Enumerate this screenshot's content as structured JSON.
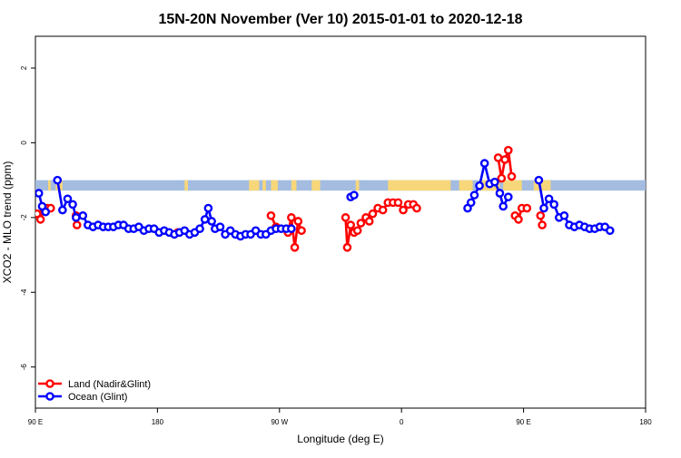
{
  "chart_data": {
    "type": "line",
    "title": "15N-20N November (Ver 10)   2015-01-01 to 2020-12-18",
    "xlabel": "Longitude (deg E)",
    "ylabel": "XCO2 - MLO trend (ppm)",
    "xlim": [
      90,
      450
    ],
    "ylim": [
      -7.1,
      2.85
    ],
    "x_ticks": [
      {
        "value": 90,
        "label": "90 E"
      },
      {
        "value": 162,
        "label": "180"
      },
      {
        "value": 234,
        "label": "90 W"
      },
      {
        "value": 306,
        "label": "0"
      },
      {
        "value": 378,
        "label": "90 E"
      },
      {
        "value": 450,
        "label": "180"
      }
    ],
    "y_ticks": [
      {
        "value": 2,
        "label": "2"
      },
      {
        "value": 0,
        "label": "0"
      },
      {
        "value": -2,
        "label": "-2"
      },
      {
        "value": -4,
        "label": "-4"
      },
      {
        "value": -6,
        "label": "-6"
      }
    ],
    "grid": false,
    "legend_position": "bottom-left",
    "land_ocean_band": {
      "y_range": [
        -1.28,
        -1.0
      ],
      "ocean_color": "#a3bce0",
      "land_color": "#f7d77a",
      "land_segments": [
        [
          97.5,
          99
        ],
        [
          102,
          106
        ],
        [
          178,
          180
        ],
        [
          216,
          222
        ],
        [
          224,
          226
        ],
        [
          229,
          233
        ],
        [
          241,
          244
        ],
        [
          253,
          258
        ],
        [
          279,
          281
        ],
        [
          298,
          335
        ],
        [
          340,
          348
        ],
        [
          352,
          364
        ],
        [
          366,
          377
        ],
        [
          384,
          394
        ]
      ]
    },
    "series": [
      {
        "name": "Land (Nadir&Glint)",
        "color": "#ff0000",
        "segments": [
          [
            [
              91,
              -1.9
            ],
            [
              93,
              -2.05
            ],
            [
              95,
              -1.8
            ],
            [
              97,
              -1.75
            ],
            [
              99,
              -1.75
            ]
          ],
          [
            [
              114,
              -1.95
            ],
            [
              114.5,
              -2.2
            ]
          ],
          [
            [
              174,
              -2.4
            ]
          ],
          [
            [
              229,
              -1.95
            ],
            [
              232,
              -2.25
            ]
          ],
          [
            [
              239,
              -2.4
            ],
            [
              241,
              -2.0
            ],
            [
              243,
              -2.8
            ],
            [
              245,
              -2.1
            ],
            [
              247,
              -2.35
            ]
          ],
          [
            [
              273,
              -2.0
            ],
            [
              274,
              -2.8
            ],
            [
              276,
              -2.2
            ],
            [
              278,
              -2.4
            ],
            [
              280,
              -2.35
            ],
            [
              282,
              -2.15
            ],
            [
              285,
              -2.0
            ],
            [
              287,
              -2.1
            ],
            [
              289,
              -1.9
            ],
            [
              292,
              -1.75
            ],
            [
              295,
              -1.8
            ],
            [
              298,
              -1.6
            ],
            [
              301,
              -1.6
            ],
            [
              304,
              -1.6
            ],
            [
              307,
              -1.8
            ],
            [
              310,
              -1.65
            ],
            [
              313,
              -1.65
            ],
            [
              315,
              -1.75
            ]
          ],
          [
            [
              363,
              -0.4
            ],
            [
              365,
              -0.95
            ],
            [
              367,
              -0.45
            ],
            [
              369,
              -0.2
            ],
            [
              371,
              -0.9
            ]
          ],
          [
            [
              373,
              -1.95
            ],
            [
              375,
              -2.05
            ],
            [
              377,
              -1.75
            ],
            [
              380,
              -1.75
            ]
          ],
          [
            [
              388,
              -1.95
            ],
            [
              389,
              -2.2
            ]
          ]
        ]
      },
      {
        "name": "Ocean (Glint)",
        "color": "#0000ff",
        "segments": [
          [
            [
              92,
              -1.35
            ],
            [
              94,
              -1.7
            ],
            [
              96,
              -1.85
            ]
          ],
          [
            [
              103,
              -1.0
            ],
            [
              106,
              -1.8
            ],
            [
              109,
              -1.5
            ],
            [
              112,
              -1.65
            ],
            [
              114,
              -2.0
            ],
            [
              118,
              -1.95
            ],
            [
              121,
              -2.2
            ],
            [
              124,
              -2.25
            ],
            [
              127,
              -2.2
            ],
            [
              130,
              -2.25
            ],
            [
              133,
              -2.25
            ],
            [
              136,
              -2.25
            ],
            [
              139,
              -2.2
            ],
            [
              142,
              -2.2
            ],
            [
              145,
              -2.3
            ],
            [
              148,
              -2.3
            ],
            [
              151,
              -2.25
            ],
            [
              154,
              -2.35
            ],
            [
              157,
              -2.3
            ],
            [
              160,
              -2.3
            ],
            [
              163,
              -2.4
            ],
            [
              166,
              -2.35
            ],
            [
              169,
              -2.4
            ],
            [
              172,
              -2.45
            ],
            [
              175,
              -2.4
            ],
            [
              178,
              -2.35
            ],
            [
              181,
              -2.45
            ],
            [
              184,
              -2.4
            ],
            [
              187,
              -2.3
            ],
            [
              190,
              -2.05
            ],
            [
              192,
              -1.75
            ],
            [
              194,
              -2.1
            ],
            [
              196,
              -2.3
            ],
            [
              199,
              -2.25
            ],
            [
              202,
              -2.45
            ],
            [
              205,
              -2.35
            ],
            [
              208,
              -2.45
            ],
            [
              211,
              -2.5
            ],
            [
              214,
              -2.45
            ],
            [
              217,
              -2.45
            ],
            [
              220,
              -2.35
            ],
            [
              223,
              -2.45
            ],
            [
              226,
              -2.45
            ],
            [
              229,
              -2.35
            ],
            [
              232,
              -2.3
            ],
            [
              235,
              -2.3
            ],
            [
              238,
              -2.3
            ],
            [
              241,
              -2.3
            ]
          ],
          [
            [
              276,
              -1.45
            ],
            [
              278,
              -1.4
            ]
          ],
          [
            [
              345,
              -1.75
            ],
            [
              347,
              -1.6
            ],
            [
              349,
              -1.4
            ],
            [
              352,
              -1.15
            ],
            [
              355,
              -0.55
            ],
            [
              358,
              -1.1
            ],
            [
              361,
              -1.05
            ],
            [
              364,
              -1.35
            ],
            [
              366,
              -1.7
            ],
            [
              369,
              -1.45
            ]
          ],
          [
            [
              387,
              -1.0
            ],
            [
              390,
              -1.75
            ],
            [
              393,
              -1.5
            ],
            [
              396,
              -1.65
            ],
            [
              399,
              -2.0
            ],
            [
              402,
              -1.95
            ],
            [
              405,
              -2.2
            ],
            [
              408,
              -2.25
            ],
            [
              411,
              -2.2
            ],
            [
              414,
              -2.25
            ],
            [
              417,
              -2.3
            ],
            [
              420,
              -2.3
            ],
            [
              423,
              -2.25
            ],
            [
              426,
              -2.25
            ],
            [
              429,
              -2.35
            ]
          ]
        ]
      }
    ]
  }
}
